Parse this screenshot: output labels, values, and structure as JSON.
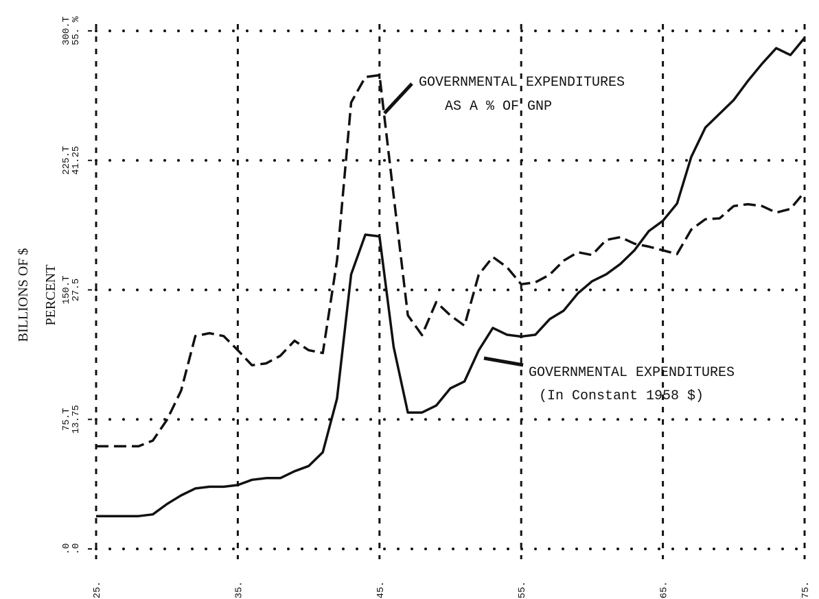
{
  "chart_data": {
    "type": "line",
    "ylabel": "BILLIONS OF $",
    "y2label": "PERCENT",
    "x": [
      1925,
      1926,
      1927,
      1928,
      1929,
      1930,
      1931,
      1932,
      1933,
      1934,
      1935,
      1936,
      1937,
      1938,
      1939,
      1940,
      1941,
      1942,
      1943,
      1944,
      1945,
      1946,
      1947,
      1948,
      1949,
      1950,
      1951,
      1952,
      1953,
      1954,
      1955,
      1956,
      1957,
      1958,
      1959,
      1960,
      1961,
      1962,
      1963,
      1964,
      1965,
      1966,
      1967,
      1968,
      1969,
      1970,
      1971,
      1972,
      1973,
      1974,
      1975
    ],
    "series": [
      {
        "name_lines": [
          "GOVERNMENTAL EXPENDITURES",
          "(In Constant 1958 $)"
        ],
        "color": "#111111",
        "style": "solid",
        "axis": "y",
        "values": [
          19,
          19,
          19,
          19,
          20,
          26,
          31,
          35,
          36,
          36,
          37,
          40,
          41,
          41,
          45,
          48,
          56,
          87,
          159,
          182,
          181,
          117,
          79,
          79,
          83,
          93,
          97,
          115,
          128,
          124,
          123,
          124,
          133,
          138,
          148,
          155,
          159,
          165,
          173,
          184,
          190,
          200,
          227,
          244,
          252,
          260,
          271,
          281,
          290,
          286,
          296
        ]
      },
      {
        "name_lines": [
          "GOVERNMENTAL EXPENDITURES",
          "AS A % OF GNP"
        ],
        "color": "#111111",
        "style": "dashed",
        "axis": "y2",
        "values": [
          10.9,
          10.9,
          10.9,
          10.9,
          11.5,
          13.7,
          16.8,
          22.6,
          22.9,
          22.6,
          21.1,
          19.5,
          19.7,
          20.5,
          22.1,
          21.1,
          20.8,
          30.6,
          47.4,
          50.1,
          50.3,
          37.5,
          24.8,
          22.7,
          26.2,
          24.8,
          23.7,
          29.1,
          31.0,
          29.9,
          28.1,
          28.3,
          29.1,
          30.6,
          31.5,
          31.2,
          32.8,
          33.1,
          32.4,
          32.1,
          31.7,
          31.3,
          33.9,
          35.0,
          35.1,
          36.4,
          36.6,
          36.4,
          35.7,
          36.1,
          37.9
        ]
      }
    ],
    "xlim": [
      1925,
      1975
    ],
    "xticks": [
      {
        "value": 1925,
        "label": "1925."
      },
      {
        "value": 1935,
        "label": "1935."
      },
      {
        "value": 1945,
        "label": "1945."
      },
      {
        "value": 1955,
        "label": "1955."
      },
      {
        "value": 1965,
        "label": "1965."
      },
      {
        "value": 1975,
        "label": "1975."
      }
    ],
    "ylim": [
      0,
      300
    ],
    "yticks": [
      {
        "value": 0,
        "label": ".0"
      },
      {
        "value": 75,
        "label": "75.T"
      },
      {
        "value": 150,
        "label": "150.T"
      },
      {
        "value": 225,
        "label": "225.T"
      },
      {
        "value": 300,
        "label": "300.T"
      }
    ],
    "y2lim": [
      0,
      55
    ],
    "y2ticks": [
      {
        "value": 0,
        "label": ".0"
      },
      13.75,
      27.5,
      41.25,
      {
        "value": 55,
        "label": "55. %"
      }
    ],
    "grid": true
  }
}
